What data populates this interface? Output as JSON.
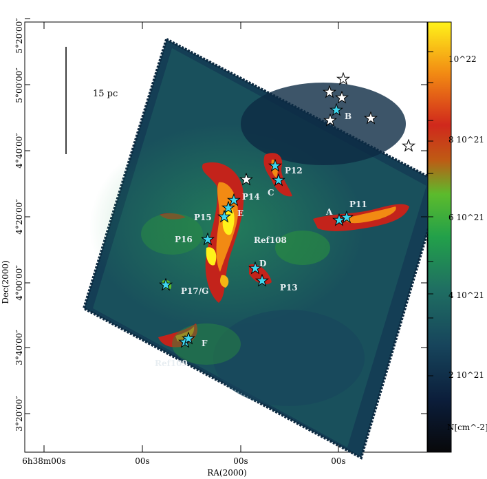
{
  "map": {
    "scale_bar_label": "15 pc",
    "x_axis_label": "RA(2000)",
    "y_axis_label": "Dec(2000)",
    "x_ticks": [
      "6h38m00s",
      "00s",
      "00s",
      "00s",
      "00s"
    ],
    "y_ticks": [
      "5°20′00″",
      "5°00′00″",
      "4°40′00″",
      "4°20′00″",
      "4°00′00″",
      "3°40′00″",
      "3°20′00″"
    ]
  },
  "colorbar": {
    "ticks": [
      "10^22",
      "8 10^21",
      "6 10^21",
      "4 10^21",
      "2 10^21"
    ],
    "unit_label": "N[cm^-2]",
    "colors": [
      "#08080a",
      "#0b1d3a",
      "#17455c",
      "#1f6f62",
      "#22a04a",
      "#5cbb2c",
      "#bf5a14",
      "#d0281c",
      "#f28a13",
      "#fff21a"
    ]
  },
  "sources": [
    {
      "label": "P12"
    },
    {
      "label": "C"
    },
    {
      "label": "P14"
    },
    {
      "label": "E"
    },
    {
      "label": "P15"
    },
    {
      "label": "P16"
    },
    {
      "label": "Ref108"
    },
    {
      "label": "P11"
    },
    {
      "label": "A"
    },
    {
      "label": "B"
    },
    {
      "label": "D"
    },
    {
      "label": "P13"
    },
    {
      "label": "P17/G"
    },
    {
      "label": "F"
    },
    {
      "label": "Ref109"
    }
  ],
  "star_colors": {
    "cyan": "#3fd6ee",
    "white": "#ffffff"
  }
}
